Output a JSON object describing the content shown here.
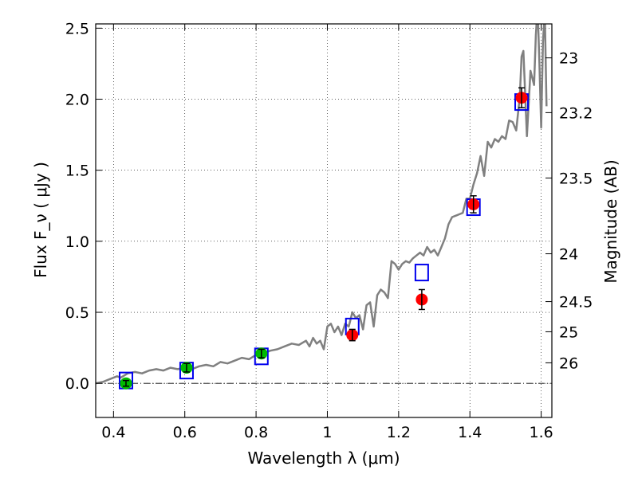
{
  "chart_data": {
    "type": "scatter",
    "xlabel": "Wavelength  λ (μm)",
    "ylabel": "Flux  F_ν  ( μJy )",
    "y2label": "Magnitude (AB)",
    "xlim": [
      0.35,
      1.63
    ],
    "ylim": [
      -0.24,
      2.53
    ],
    "grid": true,
    "x_ticks": [
      {
        "value": 0.4,
        "label": "0.4"
      },
      {
        "value": 0.6,
        "label": "0.6"
      },
      {
        "value": 0.8,
        "label": "0.8"
      },
      {
        "value": 1.0,
        "label": "1"
      },
      {
        "value": 1.2,
        "label": "1.2"
      },
      {
        "value": 1.4,
        "label": "1.4"
      },
      {
        "value": 1.6,
        "label": "1.6"
      }
    ],
    "y_ticks": [
      {
        "value": 0.0,
        "label": "0.0"
      },
      {
        "value": 0.5,
        "label": "0.5"
      },
      {
        "value": 1.0,
        "label": "1.0"
      },
      {
        "value": 1.5,
        "label": "1.5"
      },
      {
        "value": 2.0,
        "label": "2.0"
      },
      {
        "value": 2.5,
        "label": "2.5"
      }
    ],
    "y2_ticks": [
      {
        "value": 23,
        "label": "23"
      },
      {
        "value": 23.2,
        "label": "23.2"
      },
      {
        "value": 23.5,
        "label": "23.5"
      },
      {
        "value": 24,
        "label": "24"
      },
      {
        "value": 24.5,
        "label": "24.5"
      },
      {
        "value": 25,
        "label": "25"
      },
      {
        "value": 26,
        "label": "26"
      }
    ],
    "zero_line": true,
    "colors": {
      "spectrum": "#808080",
      "model_box": "#0000ee",
      "red_points": "#ff0000",
      "green_points": "#00bb00",
      "errorbar": "#000000"
    },
    "spectrum": {
      "x": [
        0.35,
        0.37,
        0.39,
        0.41,
        0.42,
        0.44,
        0.46,
        0.48,
        0.5,
        0.52,
        0.54,
        0.56,
        0.58,
        0.6,
        0.62,
        0.64,
        0.66,
        0.68,
        0.7,
        0.72,
        0.74,
        0.76,
        0.78,
        0.8,
        0.82,
        0.84,
        0.86,
        0.88,
        0.9,
        0.92,
        0.94,
        0.95,
        0.96,
        0.97,
        0.98,
        0.99,
        1.0,
        1.01,
        1.02,
        1.03,
        1.04,
        1.05,
        1.06,
        1.07,
        1.08,
        1.09,
        1.1,
        1.11,
        1.12,
        1.13,
        1.14,
        1.15,
        1.16,
        1.17,
        1.18,
        1.19,
        1.2,
        1.21,
        1.22,
        1.23,
        1.24,
        1.25,
        1.26,
        1.27,
        1.28,
        1.29,
        1.3,
        1.31,
        1.32,
        1.33,
        1.34,
        1.35,
        1.36,
        1.37,
        1.38,
        1.39,
        1.4,
        1.41,
        1.42,
        1.43,
        1.44,
        1.45,
        1.46,
        1.47,
        1.48,
        1.49,
        1.5,
        1.51,
        1.52,
        1.53,
        1.54,
        1.545,
        1.55,
        1.56,
        1.57,
        1.58,
        1.585,
        1.59,
        1.595,
        1.6,
        1.605,
        1.61,
        1.615
      ],
      "y": [
        0.0,
        0.01,
        0.03,
        0.05,
        0.04,
        0.07,
        0.08,
        0.07,
        0.09,
        0.1,
        0.09,
        0.11,
        0.1,
        0.11,
        0.1,
        0.12,
        0.13,
        0.12,
        0.15,
        0.14,
        0.16,
        0.18,
        0.17,
        0.2,
        0.21,
        0.23,
        0.24,
        0.26,
        0.28,
        0.27,
        0.3,
        0.26,
        0.32,
        0.28,
        0.3,
        0.24,
        0.4,
        0.42,
        0.36,
        0.4,
        0.34,
        0.42,
        0.4,
        0.5,
        0.46,
        0.48,
        0.38,
        0.55,
        0.57,
        0.4,
        0.62,
        0.66,
        0.64,
        0.6,
        0.86,
        0.84,
        0.8,
        0.84,
        0.86,
        0.85,
        0.88,
        0.9,
        0.92,
        0.9,
        0.96,
        0.92,
        0.94,
        0.9,
        0.96,
        1.02,
        1.12,
        1.17,
        1.18,
        1.19,
        1.2,
        1.3,
        1.3,
        1.4,
        1.48,
        1.6,
        1.46,
        1.7,
        1.66,
        1.72,
        1.7,
        1.74,
        1.72,
        1.85,
        1.84,
        1.78,
        2.02,
        2.3,
        2.34,
        1.74,
        2.2,
        2.1,
        2.45,
        2.65,
        2.25,
        1.8,
        2.4,
        2.62,
        1.95
      ]
    },
    "series": [
      {
        "marker": "open-rectangle",
        "color": "#0000ee",
        "x": [
          0.435,
          0.605,
          0.815,
          1.07,
          1.265,
          1.41,
          1.545
        ],
        "y": [
          0.02,
          0.09,
          0.19,
          0.4,
          0.78,
          1.24,
          1.98
        ]
      },
      {
        "marker": "filled-circle",
        "color": "#00bb00",
        "x": [
          0.435,
          0.605,
          0.815
        ],
        "y": [
          0.0,
          0.11,
          0.21
        ],
        "err": [
          0.02,
          0.03,
          0.03
        ]
      },
      {
        "marker": "filled-circle",
        "color": "#ff0000",
        "x": [
          1.07,
          1.265,
          1.41,
          1.545
        ],
        "y": [
          0.34,
          0.59,
          1.26,
          2.01
        ],
        "err": [
          0.04,
          0.07,
          0.06,
          0.07
        ]
      }
    ]
  }
}
